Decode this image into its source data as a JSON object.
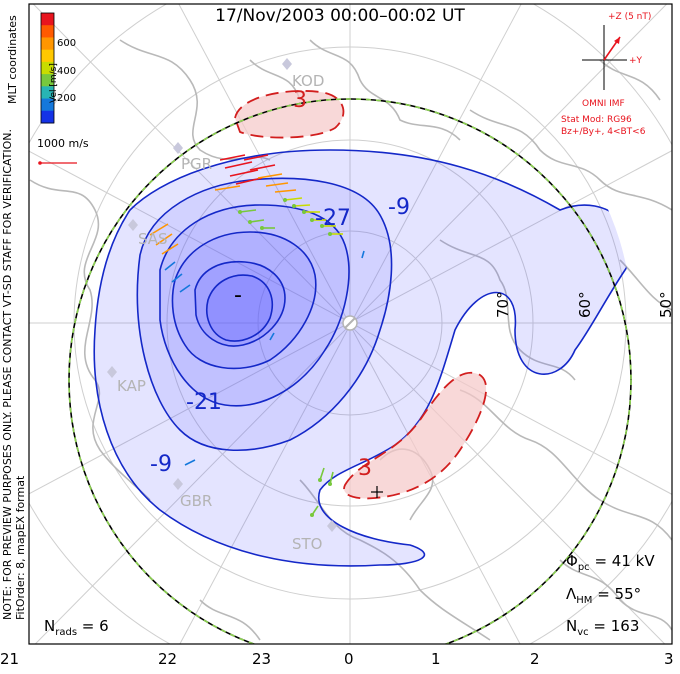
{
  "title": "17/Nov/2003 00:00–00:02 UT",
  "note": [
    "NOTE: FOR PREVIEW PURPOSES ONLY. PLEASE CONTACT VT-SD STAFF FOR VERIFICATION.",
    "FitOrder: 8, mapEX format"
  ],
  "colorbar": {
    "coord_label": "MLT coordinates",
    "label": "Vel [m/s]",
    "ticks": [
      "600",
      "400",
      "200"
    ],
    "colors": [
      "#e8141e",
      "#ff5a00",
      "#ff9600",
      "#ffc800",
      "#c8dc00",
      "#78c83c",
      "#28b4b4",
      "#1478dc",
      "#1432e6"
    ]
  },
  "reference_vector": "1000 m/s",
  "imf": {
    "z_label": "+Z (5 nT)",
    "y_label": "+Y",
    "source": "OMNI IMF",
    "model": "Stat Mod: RG96",
    "condition": "Bz+/By+, 4<BT<6"
  },
  "stats": {
    "phi_pc": "41 kV",
    "lambda_hm": "55°",
    "n_vc": "163",
    "n_rads": "6"
  },
  "mlt_ticks": [
    "21",
    "22",
    "23",
    "0",
    "1",
    "2",
    "3"
  ],
  "lat_labels": [
    "70°",
    "60°",
    "50°"
  ],
  "sites": [
    "KOD",
    "PGR",
    "SAS",
    "KAP",
    "GBR",
    "STO"
  ],
  "contours": [
    "3",
    "-9",
    "-21",
    "-9",
    "3",
    "-27",
    "-9",
    "-"
  ],
  "symbols": {
    "min": "–",
    "max": "+"
  },
  "colors": {
    "negative_fill": "#5a5aff",
    "positive_fill": "#f5c8c8",
    "negative_line": "#1428c8",
    "positive_line": "#d21e1e",
    "land": "#b9b9b9",
    "boundary": "#8cd250"
  }
}
